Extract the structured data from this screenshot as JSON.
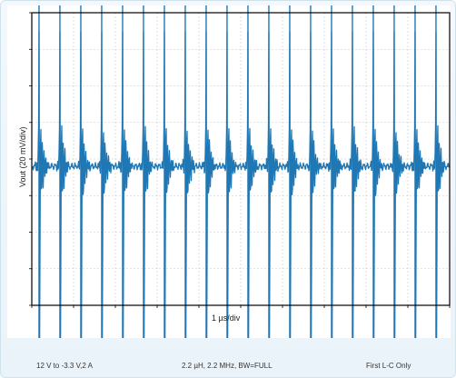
{
  "chart_data": {
    "type": "line",
    "title": "",
    "xlabel": "1 µs/div",
    "ylabel": "Vout (20 mV/div)",
    "x_divisions": 10,
    "y_divisions": 8,
    "grid": true,
    "series": [
      {
        "color": "#1f77b4",
        "description": "switching ripple with periodic ringing spikes",
        "pulses_visible": 20,
        "baseline_mV": 0,
        "peak_high_mV": 90,
        "peak_low_mV": -115,
        "ringing_mV": 30
      }
    ]
  },
  "captions": {
    "left": "12 V to -3.3 V,2 A",
    "center": "2.2 µH, 2.2 MHz, BW=FULL",
    "right": "First L-C Only"
  }
}
